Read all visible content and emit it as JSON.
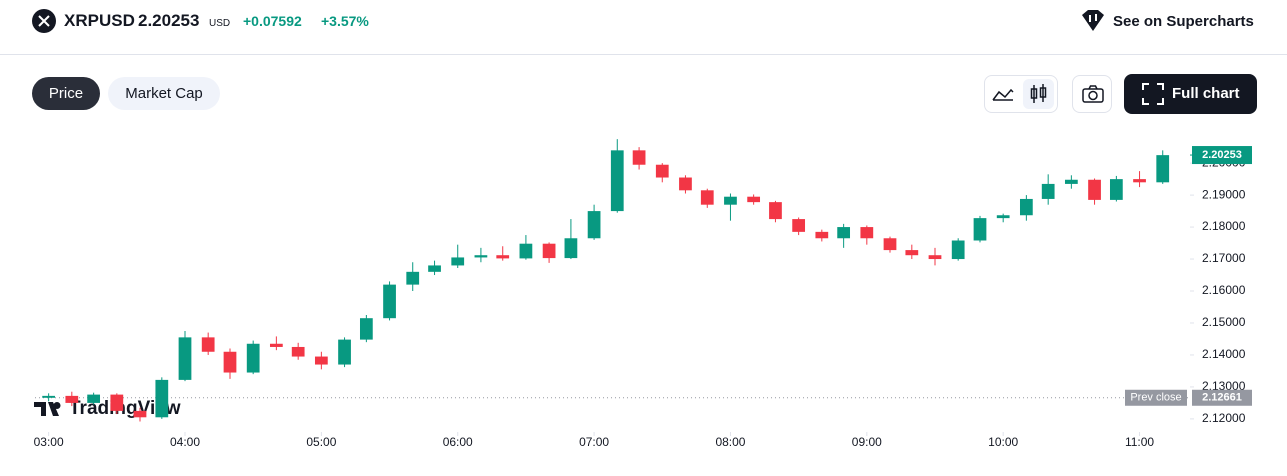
{
  "header": {
    "symbol": "XRPUSD",
    "price": "2.20253",
    "currency": "USD",
    "change": "+0.07592",
    "change_percent": "+3.57%",
    "link": "See on Supercharts"
  },
  "tabs": [
    "Price",
    "Market Cap"
  ],
  "full_chart": "Full chart",
  "chart_data": {
    "type": "candlestick",
    "watermark": "TradingView",
    "up_color": "#089981",
    "down_color": "#f23645",
    "x": [
      3.0,
      3.17,
      3.33,
      3.5,
      3.67,
      3.83,
      4.0,
      4.17,
      4.33,
      4.5,
      4.67,
      4.83,
      5.0,
      5.17,
      5.33,
      5.5,
      5.67,
      5.83,
      6.0,
      6.17,
      6.33,
      6.5,
      6.67,
      6.83,
      7.0,
      7.17,
      7.33,
      7.5,
      7.67,
      7.83,
      8.0,
      8.17,
      8.33,
      8.5,
      8.67,
      8.83,
      9.0,
      9.17,
      9.33,
      9.5,
      9.67,
      9.83,
      10.0,
      10.17,
      10.33,
      10.5,
      10.67,
      10.83,
      11.0,
      11.17
    ],
    "open": [
      2.1266,
      2.1272,
      2.125,
      2.1276,
      2.1225,
      2.1205,
      2.1322,
      2.1455,
      2.141,
      2.1345,
      2.1435,
      2.1425,
      2.1395,
      2.137,
      2.1448,
      2.1515,
      2.162,
      2.166,
      2.168,
      2.1705,
      2.1712,
      2.1702,
      2.1748,
      2.1703,
      2.1765,
      2.185,
      2.204,
      2.1995,
      2.1955,
      2.1915,
      2.187,
      2.1895,
      2.1878,
      2.1825,
      2.1785,
      2.1765,
      2.18,
      2.1765,
      2.1728,
      2.1712,
      2.17,
      2.1758,
      2.1828,
      2.1837,
      2.1888,
      2.1935,
      2.1948,
      2.1885,
      2.195,
      2.194
    ],
    "high": [
      2.128,
      2.1285,
      2.1282,
      2.128,
      2.1235,
      2.133,
      2.1475,
      2.147,
      2.142,
      2.1445,
      2.1458,
      2.1438,
      2.141,
      2.1455,
      2.1525,
      2.163,
      2.169,
      2.1695,
      2.1745,
      2.1735,
      2.174,
      2.1775,
      2.1752,
      2.1825,
      2.187,
      2.2075,
      2.205,
      2.2,
      2.1962,
      2.192,
      2.1905,
      2.1902,
      2.1882,
      2.183,
      2.1792,
      2.181,
      2.1805,
      2.177,
      2.1745,
      2.1735,
      2.1765,
      2.1835,
      2.1842,
      2.19,
      2.1965,
      2.1962,
      2.1952,
      2.196,
      2.1975,
      2.204
    ],
    "low": [
      2.1255,
      2.124,
      2.1245,
      2.1215,
      2.1192,
      2.12,
      2.1318,
      2.14,
      2.1325,
      2.134,
      2.1415,
      2.1385,
      2.1355,
      2.1362,
      2.144,
      2.1508,
      2.16,
      2.165,
      2.1672,
      2.169,
      2.1695,
      2.1698,
      2.1688,
      2.17,
      2.176,
      2.1845,
      2.198,
      2.194,
      2.1905,
      2.186,
      2.182,
      2.187,
      2.1815,
      2.1775,
      2.1755,
      2.1735,
      2.1745,
      2.172,
      2.17,
      2.168,
      2.1695,
      2.1752,
      2.1815,
      2.182,
      2.187,
      2.192,
      2.187,
      2.188,
      2.1925,
      2.1935
    ],
    "close": [
      2.1272,
      2.125,
      2.1276,
      2.1225,
      2.1205,
      2.1322,
      2.1455,
      2.141,
      2.1345,
      2.1435,
      2.1425,
      2.1395,
      2.137,
      2.1448,
      2.1515,
      2.162,
      2.166,
      2.168,
      2.1705,
      2.1712,
      2.1702,
      2.1748,
      2.1703,
      2.1765,
      2.185,
      2.204,
      2.1995,
      2.1955,
      2.1915,
      2.187,
      2.1895,
      2.1878,
      2.1825,
      2.1785,
      2.1765,
      2.18,
      2.1765,
      2.1728,
      2.1712,
      2.17,
      2.1758,
      2.1828,
      2.1837,
      2.1888,
      2.1935,
      2.1948,
      2.1885,
      2.195,
      2.194,
      2.2025
    ],
    "xlim": [
      2.9,
      11.37
    ],
    "xticks": [
      {
        "value": 3,
        "label": "03:00"
      },
      {
        "value": 4,
        "label": "04:00"
      },
      {
        "value": 5,
        "label": "05:00"
      },
      {
        "value": 6,
        "label": "06:00"
      },
      {
        "value": 7,
        "label": "07:00"
      },
      {
        "value": 8,
        "label": "08:00"
      },
      {
        "value": 9,
        "label": "09:00"
      },
      {
        "value": 10,
        "label": "10:00"
      },
      {
        "value": 11,
        "label": "11:00"
      }
    ],
    "ylim": [
      2.1159,
      2.2088
    ],
    "yticks": [
      {
        "value": 2.12,
        "label": "2.12000"
      },
      {
        "value": 2.13,
        "label": "2.13000"
      },
      {
        "value": 2.14,
        "label": "2.14000"
      },
      {
        "value": 2.15,
        "label": "2.15000"
      },
      {
        "value": 2.16,
        "label": "2.16000"
      },
      {
        "value": 2.17,
        "label": "2.17000"
      },
      {
        "value": 2.18,
        "label": "2.18000"
      },
      {
        "value": 2.19,
        "label": "2.19000"
      },
      {
        "value": 2.2,
        "label": "2.20000"
      }
    ],
    "last_price": 2.20253,
    "prev_close": {
      "label": "Prev close",
      "value": 2.12661
    }
  }
}
